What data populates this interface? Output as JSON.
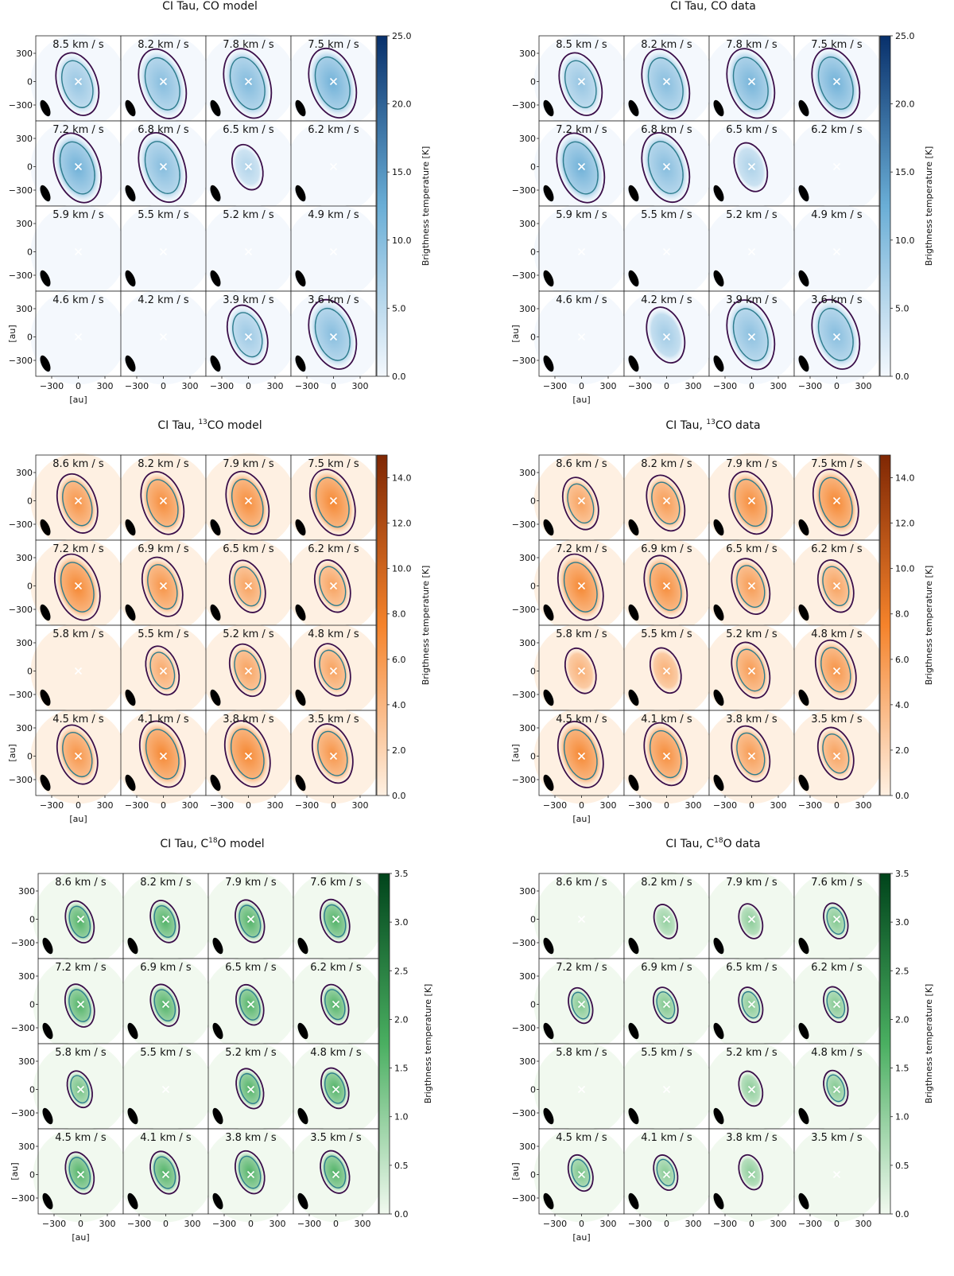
{
  "figure": {
    "colorbar_label": "Brigthness temperature [K]",
    "axis_unit_label": "[au]",
    "axis_ticks": [
      "300",
      "0",
      "−300"
    ],
    "x_ticks": [
      "−300",
      "0",
      "300"
    ]
  },
  "chart_data": [
    {
      "type": "channel_map_grid",
      "title": "CI Tau, CO model",
      "title_parts": {
        "pre": "CI Tau, ",
        "sup": "",
        "post": "CO model"
      },
      "cmap": "Blues",
      "colors": {
        "low": "#f4f8fd",
        "mid": "#6aaed6",
        "high": "#08306b"
      },
      "colorbar": {
        "min": 0.0,
        "max": 25.0,
        "ticks": [
          "0.0",
          "5.0",
          "10.0",
          "15.0",
          "20.0",
          "25.0"
        ]
      },
      "axis_range_au": [
        -450,
        450
      ],
      "channels": [
        "8.5 km / s",
        "8.2 km / s",
        "7.8 km / s",
        "7.5 km / s",
        "7.2 km / s",
        "6.8 km / s",
        "6.5 km / s",
        "6.2 km / s",
        "5.9 km / s",
        "5.5 km / s",
        "5.2 km / s",
        "4.9 km / s",
        "4.6 km / s",
        "4.2 km / s",
        "3.9 km / s",
        "3.6 km / s"
      ],
      "peak_K": [
        9,
        12,
        13,
        17,
        19,
        12,
        4,
        0,
        0,
        0,
        0,
        0,
        0,
        0,
        8,
        12
      ]
    },
    {
      "type": "channel_map_grid",
      "title": "CI Tau, CO data",
      "title_parts": {
        "pre": "CI Tau, ",
        "sup": "",
        "post": "CO data"
      },
      "cmap": "Blues",
      "colors": {
        "low": "#f4f8fd",
        "mid": "#6aaed6",
        "high": "#08306b"
      },
      "colorbar": {
        "min": 0.0,
        "max": 25.0,
        "ticks": [
          "0.0",
          "5.0",
          "10.0",
          "15.0",
          "20.0",
          "25.0"
        ]
      },
      "axis_range_au": [
        -450,
        450
      ],
      "channels": [
        "8.5 km / s",
        "8.2 km / s",
        "7.8 km / s",
        "7.5 km / s",
        "7.2 km / s",
        "6.8 km / s",
        "6.5 km / s",
        "6.2 km / s",
        "5.9 km / s",
        "5.5 km / s",
        "5.2 km / s",
        "4.9 km / s",
        "4.6 km / s",
        "4.2 km / s",
        "3.9 km / s",
        "3.6 km / s"
      ],
      "peak_K": [
        9,
        12,
        15,
        20,
        20,
        12,
        5,
        0,
        0,
        0,
        0,
        0,
        0,
        7,
        11,
        12
      ]
    },
    {
      "type": "channel_map_grid",
      "title": "CI Tau, 13CO model",
      "title_parts": {
        "pre": "CI Tau, ",
        "sup": "13",
        "post": "CO model"
      },
      "cmap": "Oranges",
      "colors": {
        "low": "#fef0e2",
        "mid": "#f5832b",
        "high": "#7f2704"
      },
      "colorbar": {
        "min": 0.0,
        "max": 15.0,
        "ticks": [
          "0.0",
          "2.0",
          "4.0",
          "6.0",
          "8.0",
          "10.0",
          "12.0",
          "14.0"
        ]
      },
      "axis_range_au": [
        -450,
        450
      ],
      "channels": [
        "8.6 km / s",
        "8.2 km / s",
        "7.9 km / s",
        "7.5 km / s",
        "7.2 km / s",
        "6.9 km / s",
        "6.5 km / s",
        "6.2 km / s",
        "5.8 km / s",
        "5.5 km / s",
        "5.2 km / s",
        "4.8 km / s",
        "4.5 km / s",
        "4.1 km / s",
        "3.8 km / s",
        "3.5 km / s"
      ],
      "peak_K": [
        8,
        9,
        9,
        10,
        10,
        8,
        6,
        6,
        0,
        5,
        6,
        6,
        8,
        10,
        10,
        8
      ]
    },
    {
      "type": "channel_map_grid",
      "title": "CI Tau, 13CO data",
      "title_parts": {
        "pre": "CI Tau, ",
        "sup": "13",
        "post": "CO data"
      },
      "cmap": "Oranges",
      "colors": {
        "low": "#fef0e2",
        "mid": "#f5832b",
        "high": "#7f2704"
      },
      "colorbar": {
        "min": 0.0,
        "max": 15.0,
        "ticks": [
          "0.0",
          "2.0",
          "4.0",
          "6.0",
          "8.0",
          "10.0",
          "12.0",
          "14.0"
        ]
      },
      "axis_range_au": [
        -450,
        450
      ],
      "channels": [
        "8.6 km / s",
        "8.2 km / s",
        "7.9 km / s",
        "7.5 km / s",
        "7.2 km / s",
        "6.9 km / s",
        "6.5 km / s",
        "6.2 km / s",
        "5.8 km / s",
        "5.5 km / s",
        "5.2 km / s",
        "4.8 km / s",
        "4.5 km / s",
        "4.1 km / s",
        "3.8 km / s",
        "3.5 km / s"
      ],
      "peak_K": [
        6,
        7,
        9,
        10,
        10,
        9,
        7,
        6,
        4,
        4,
        7,
        8,
        10,
        9,
        7,
        6
      ]
    },
    {
      "type": "channel_map_grid",
      "title": "CI Tau, C18O model",
      "title_parts": {
        "pre": "CI Tau, C",
        "sup": "18",
        "post": "O model"
      },
      "cmap": "Greens",
      "colors": {
        "low": "#f1f9ef",
        "mid": "#4aaf61",
        "high": "#00441b"
      },
      "colorbar": {
        "min": 0.0,
        "max": 3.5,
        "ticks": [
          "0.0",
          "0.5",
          "1.0",
          "1.5",
          "2.0",
          "2.5",
          "3.0",
          "3.5"
        ]
      },
      "axis_range_au": [
        -450,
        450
      ],
      "channels": [
        "8.6 km / s",
        "8.2 km / s",
        "7.9 km / s",
        "7.6 km / s",
        "7.2 km / s",
        "6.9 km / s",
        "6.5 km / s",
        "6.2 km / s",
        "5.8 km / s",
        "5.5 km / s",
        "5.2 km / s",
        "4.8 km / s",
        "4.5 km / s",
        "4.1 km / s",
        "3.8 km / s",
        "3.5 km / s"
      ],
      "peak_K": [
        3.0,
        3.1,
        3.2,
        3.3,
        3.3,
        3.0,
        2.6,
        2.5,
        1.5,
        0,
        2.5,
        2.6,
        3.0,
        3.2,
        3.3,
        3.2
      ]
    },
    {
      "type": "channel_map_grid",
      "title": "CI Tau, C18O data",
      "title_parts": {
        "pre": "CI Tau, C",
        "sup": "18",
        "post": "O data"
      },
      "cmap": "Greens",
      "colors": {
        "low": "#f1f9ef",
        "mid": "#4aaf61",
        "high": "#00441b"
      },
      "colorbar": {
        "min": 0.0,
        "max": 3.5,
        "ticks": [
          "0.0",
          "0.5",
          "1.0",
          "1.5",
          "2.0",
          "2.5",
          "3.0",
          "3.5"
        ]
      },
      "axis_range_au": [
        -450,
        450
      ],
      "channels": [
        "8.6 km / s",
        "8.2 km / s",
        "7.9 km / s",
        "7.6 km / s",
        "7.2 km / s",
        "6.9 km / s",
        "6.5 km / s",
        "6.2 km / s",
        "5.8 km / s",
        "5.5 km / s",
        "5.2 km / s",
        "4.8 km / s",
        "4.5 km / s",
        "4.1 km / s",
        "3.8 km / s",
        "3.5 km / s"
      ],
      "peak_K": [
        0,
        0.8,
        1.0,
        1.2,
        1.2,
        1.3,
        1.1,
        1.2,
        0,
        0,
        1.0,
        1.2,
        1.4,
        1.1,
        1.0,
        0
      ]
    }
  ]
}
